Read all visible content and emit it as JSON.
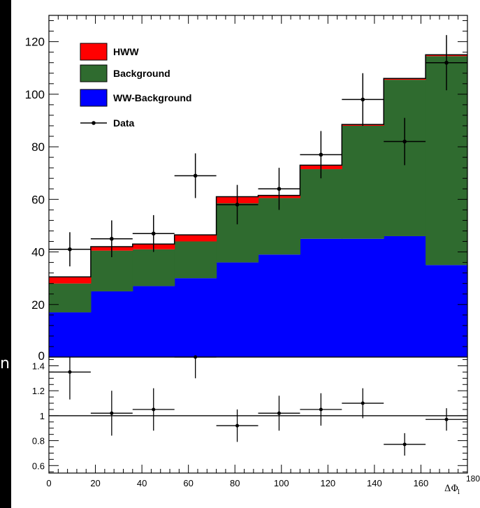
{
  "edge_text": "n",
  "chart_data": [
    {
      "type": "bar",
      "title": "",
      "xlabel": "",
      "ylabel": "",
      "xlim": [
        0,
        180
      ],
      "ylim": [
        0,
        130
      ],
      "yticks": [
        20,
        40,
        60,
        80,
        100,
        120
      ],
      "bin_edges": [
        0,
        18,
        36,
        54,
        72,
        90,
        108,
        126,
        144,
        162,
        180
      ],
      "stacked": true,
      "legend_position": "top-left",
      "series": [
        {
          "name": "WW-Background",
          "color": "#0000ff",
          "values": [
            17,
            25,
            27,
            30,
            36,
            39,
            45,
            45,
            46,
            35
          ]
        },
        {
          "name": "Background",
          "color": "#2f6b2f",
          "values": [
            11,
            15.5,
            14,
            14,
            22.5,
            21.5,
            26.5,
            43,
            59.5,
            79.5
          ]
        },
        {
          "name": "HWW",
          "color": "#ff0000",
          "values": [
            2.5,
            1.5,
            2,
            2.5,
            2.5,
            1,
            1.5,
            0.5,
            0.5,
            0.5
          ]
        }
      ],
      "data_series": {
        "name": "Data",
        "x": [
          9,
          27,
          45,
          63,
          81,
          99,
          117,
          135,
          153,
          171
        ],
        "y": [
          41,
          45,
          47,
          69,
          58,
          64,
          77,
          98,
          82,
          112
        ],
        "yerr": [
          6.5,
          7,
          7,
          8.5,
          7.5,
          8,
          9,
          10,
          9,
          10.5
        ]
      }
    },
    {
      "type": "scatter",
      "title": "",
      "xlabel": "ΔΦ",
      "xlabel_sub": "l",
      "ylabel": "",
      "xlim": [
        0,
        180
      ],
      "ylim": [
        0.54,
        1.47
      ],
      "xticks": [
        0,
        20,
        40,
        60,
        80,
        100,
        120,
        140,
        160,
        180
      ],
      "yticks": [
        0.6,
        0.8,
        1,
        1.2,
        1.4
      ],
      "reference_line": 1,
      "points": {
        "x": [
          9,
          27,
          45,
          63,
          81,
          99,
          117,
          135,
          153,
          171
        ],
        "y": [
          1.35,
          1.02,
          1.05,
          1.48,
          0.92,
          1.02,
          1.05,
          1.1,
          0.77,
          0.97
        ],
        "yerr": [
          0.22,
          0.18,
          0.17,
          0.18,
          0.13,
          0.14,
          0.13,
          0.12,
          0.09,
          0.09
        ]
      }
    }
  ]
}
